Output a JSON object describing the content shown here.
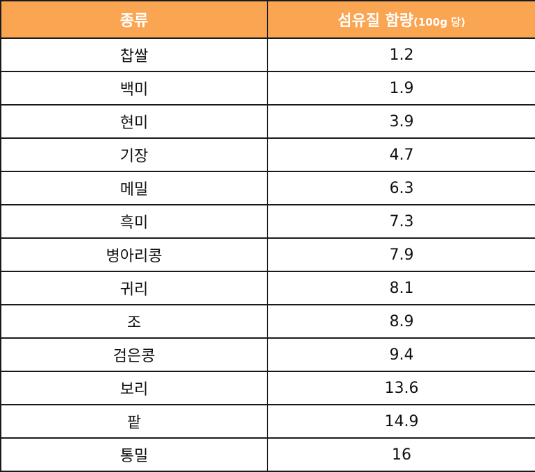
{
  "table": {
    "header": {
      "col1": "종류",
      "col2_main": "섬유질 함량",
      "col2_unit": "(100g 당)"
    },
    "header_color": "#f9a552",
    "rows": [
      {
        "type": "찹쌀",
        "fiber": "1.2"
      },
      {
        "type": "백미",
        "fiber": "1.9"
      },
      {
        "type": "현미",
        "fiber": "3.9"
      },
      {
        "type": "기장",
        "fiber": "4.7"
      },
      {
        "type": "메밀",
        "fiber": "6.3"
      },
      {
        "type": "흑미",
        "fiber": "7.3"
      },
      {
        "type": "병아리콩",
        "fiber": "7.9"
      },
      {
        "type": "귀리",
        "fiber": "8.1"
      },
      {
        "type": "조",
        "fiber": "8.9"
      },
      {
        "type": "검은콩",
        "fiber": "9.4"
      },
      {
        "type": "보리",
        "fiber": "13.6"
      },
      {
        "type": "팥",
        "fiber": "14.9"
      },
      {
        "type": "통밀",
        "fiber": "16"
      }
    ]
  }
}
